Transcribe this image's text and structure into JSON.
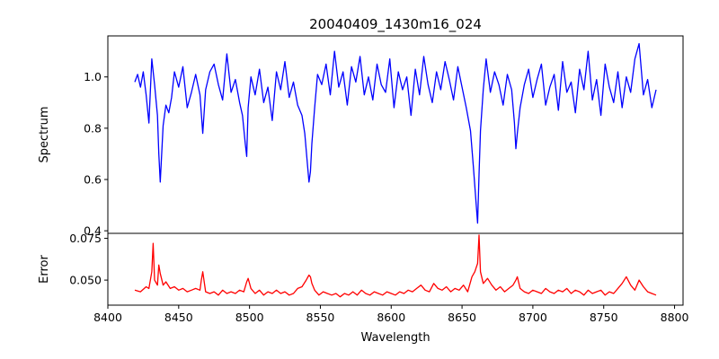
{
  "chart_data": {
    "type": "line",
    "title": "20040409_1430m16_024",
    "xlabel": "Wavelength",
    "xlim": [
      8400,
      8806
    ],
    "xticks": [
      8400,
      8450,
      8500,
      8550,
      8600,
      8650,
      8700,
      8750,
      8800
    ],
    "grid": false,
    "panels": [
      {
        "name": "spectrum",
        "ylabel": "Spectrum",
        "ylim": [
          0.39,
          1.16
        ],
        "yticks": [
          0.4,
          0.6,
          0.8,
          1.0
        ],
        "yticklabels": [
          "0.4",
          "0.6",
          "0.8",
          "1.0"
        ],
        "series": [
          {
            "color": "#0000ff",
            "x": [
              8419,
              8421,
              8423,
              8425,
              8427,
              8429,
              8431,
              8433,
              8435,
              8436,
              8437,
              8439,
              8441,
              8443,
              8445,
              8447,
              8450,
              8453,
              8456,
              8459,
              8462,
              8465,
              8467,
              8469,
              8472,
              8475,
              8478,
              8481,
              8484,
              8487,
              8490,
              8493,
              8495,
              8497,
              8498,
              8499,
              8501,
              8504,
              8507,
              8510,
              8513,
              8516,
              8519,
              8522,
              8525,
              8528,
              8531,
              8534,
              8537,
              8539,
              8541,
              8542,
              8543,
              8544,
              8546,
              8548,
              8551,
              8554,
              8557,
              8560,
              8563,
              8566,
              8569,
              8572,
              8575,
              8578,
              8581,
              8584,
              8587,
              8590,
              8593,
              8596,
              8599,
              8602,
              8605,
              8608,
              8611,
              8614,
              8617,
              8620,
              8623,
              8626,
              8629,
              8632,
              8635,
              8638,
              8641,
              8644,
              8647,
              8650,
              8653,
              8656,
              8658,
              8660,
              8661,
              8662,
              8663,
              8665,
              8667,
              8670,
              8673,
              8676,
              8679,
              8682,
              8685,
              8687,
              8688,
              8689,
              8691,
              8694,
              8697,
              8700,
              8703,
              8706,
              8709,
              8712,
              8715,
              8718,
              8721,
              8724,
              8727,
              8730,
              8733,
              8736,
              8739,
              8742,
              8745,
              8748,
              8751,
              8754,
              8757,
              8760,
              8763,
              8766,
              8769,
              8772,
              8775,
              8778,
              8781,
              8784,
              8787
            ],
            "y": [
              0.98,
              1.01,
              0.96,
              1.02,
              0.93,
              0.82,
              1.07,
              0.97,
              0.85,
              0.7,
              0.59,
              0.81,
              0.89,
              0.86,
              0.92,
              1.02,
              0.96,
              1.04,
              0.88,
              0.94,
              1.01,
              0.93,
              0.78,
              0.95,
              1.02,
              1.05,
              0.97,
              0.91,
              1.09,
              0.94,
              0.99,
              0.9,
              0.85,
              0.74,
              0.69,
              0.88,
              1.0,
              0.93,
              1.03,
              0.9,
              0.96,
              0.83,
              1.02,
              0.95,
              1.06,
              0.92,
              0.98,
              0.89,
              0.85,
              0.78,
              0.65,
              0.59,
              0.63,
              0.74,
              0.88,
              1.01,
              0.97,
              1.05,
              0.93,
              1.1,
              0.96,
              1.02,
              0.89,
              1.04,
              0.98,
              1.08,
              0.93,
              1.0,
              0.91,
              1.05,
              0.97,
              0.94,
              1.07,
              0.88,
              1.02,
              0.95,
              1.0,
              0.85,
              1.03,
              0.93,
              1.08,
              0.97,
              0.9,
              1.02,
              0.95,
              1.06,
              0.99,
              0.91,
              1.04,
              0.96,
              0.88,
              0.79,
              0.65,
              0.5,
              0.43,
              0.62,
              0.79,
              0.95,
              1.07,
              0.94,
              1.02,
              0.97,
              0.89,
              1.01,
              0.95,
              0.82,
              0.72,
              0.78,
              0.88,
              0.97,
              1.03,
              0.92,
              0.99,
              1.05,
              0.89,
              0.96,
              1.01,
              0.87,
              1.06,
              0.94,
              0.98,
              0.86,
              1.03,
              0.95,
              1.1,
              0.91,
              0.99,
              0.85,
              1.05,
              0.96,
              0.9,
              1.02,
              0.88,
              1.0,
              0.94,
              1.07,
              1.13,
              0.93,
              0.99,
              0.88,
              0.95
            ]
          }
        ]
      },
      {
        "name": "error",
        "ylabel": "Error",
        "ylim": [
          0.035,
          0.078
        ],
        "yticks": [
          0.05,
          0.075
        ],
        "yticklabels": [
          "0.050",
          "0.075"
        ],
        "series": [
          {
            "color": "#ff0000",
            "x": [
              8419,
              8423,
              8427,
              8429,
              8431,
              8432,
              8433,
              8435,
              8436,
              8437,
              8439,
              8441,
              8444,
              8447,
              8450,
              8453,
              8456,
              8459,
              8462,
              8465,
              8466,
              8467,
              8469,
              8472,
              8475,
              8478,
              8481,
              8484,
              8487,
              8490,
              8493,
              8496,
              8498,
              8499,
              8501,
              8504,
              8507,
              8510,
              8513,
              8516,
              8519,
              8522,
              8525,
              8528,
              8531,
              8534,
              8537,
              8540,
              8542,
              8543,
              8544,
              8546,
              8549,
              8552,
              8555,
              8558,
              8561,
              8564,
              8567,
              8570,
              8573,
              8576,
              8579,
              8582,
              8585,
              8588,
              8591,
              8594,
              8597,
              8600,
              8603,
              8606,
              8609,
              8612,
              8615,
              8618,
              8621,
              8624,
              8627,
              8630,
              8633,
              8636,
              8639,
              8642,
              8645,
              8648,
              8651,
              8654,
              8657,
              8659,
              8661,
              8662,
              8663,
              8665,
              8668,
              8671,
              8674,
              8677,
              8680,
              8683,
              8686,
              8688,
              8689,
              8691,
              8694,
              8697,
              8700,
              8703,
              8706,
              8709,
              8712,
              8715,
              8718,
              8721,
              8724,
              8727,
              8730,
              8733,
              8736,
              8739,
              8742,
              8745,
              8748,
              8751,
              8754,
              8757,
              8760,
              8763,
              8766,
              8769,
              8772,
              8775,
              8778,
              8781,
              8784,
              8787
            ],
            "y": [
              0.044,
              0.043,
              0.046,
              0.045,
              0.055,
              0.072,
              0.05,
              0.047,
              0.059,
              0.054,
              0.047,
              0.049,
              0.045,
              0.046,
              0.044,
              0.045,
              0.043,
              0.044,
              0.045,
              0.044,
              0.05,
              0.055,
              0.043,
              0.042,
              0.043,
              0.041,
              0.044,
              0.042,
              0.043,
              0.042,
              0.044,
              0.043,
              0.049,
              0.051,
              0.045,
              0.042,
              0.044,
              0.041,
              0.043,
              0.042,
              0.044,
              0.042,
              0.043,
              0.041,
              0.042,
              0.045,
              0.046,
              0.05,
              0.053,
              0.052,
              0.048,
              0.044,
              0.041,
              0.043,
              0.042,
              0.041,
              0.042,
              0.04,
              0.042,
              0.041,
              0.043,
              0.041,
              0.044,
              0.042,
              0.041,
              0.043,
              0.042,
              0.041,
              0.043,
              0.042,
              0.041,
              0.043,
              0.042,
              0.044,
              0.043,
              0.045,
              0.047,
              0.044,
              0.043,
              0.048,
              0.045,
              0.044,
              0.046,
              0.043,
              0.045,
              0.044,
              0.047,
              0.043,
              0.052,
              0.055,
              0.06,
              0.077,
              0.055,
              0.048,
              0.051,
              0.047,
              0.044,
              0.046,
              0.043,
              0.045,
              0.047,
              0.05,
              0.052,
              0.045,
              0.043,
              0.042,
              0.044,
              0.043,
              0.042,
              0.045,
              0.043,
              0.042,
              0.044,
              0.043,
              0.045,
              0.042,
              0.044,
              0.043,
              0.041,
              0.044,
              0.042,
              0.043,
              0.044,
              0.041,
              0.043,
              0.042,
              0.045,
              0.048,
              0.052,
              0.047,
              0.044,
              0.05,
              0.046,
              0.043,
              0.042,
              0.041
            ]
          }
        ]
      }
    ]
  }
}
